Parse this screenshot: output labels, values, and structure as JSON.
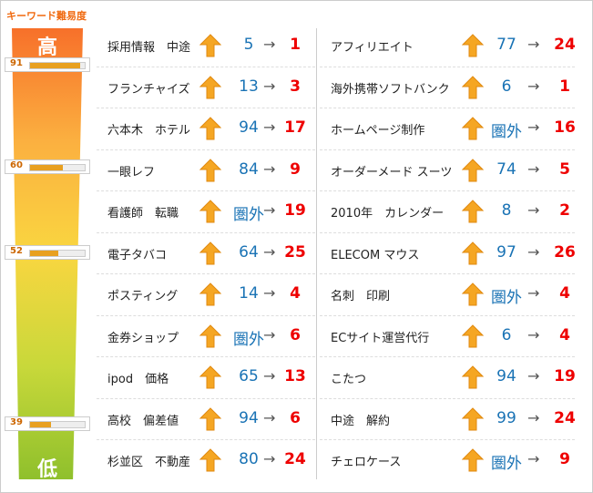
{
  "header": {
    "title": "キーワード難易度",
    "high": "高",
    "low": "低"
  },
  "arrow": "→",
  "difficulty_markers": [
    91,
    60,
    52,
    39
  ],
  "columns": [
    {
      "rows": [
        {
          "keyword": "採用情報　中途",
          "before": 5,
          "after": 1
        },
        {
          "keyword": "フランチャイズ",
          "before": 13,
          "after": 3
        },
        {
          "keyword": "六本木　ホテル",
          "before": 94,
          "after": 17
        },
        {
          "keyword": "一眼レフ",
          "before": 84,
          "after": 9
        },
        {
          "keyword": "看護師　転職",
          "before": "圏外",
          "after": 19
        },
        {
          "keyword": "電子タバコ",
          "before": 64,
          "after": 25
        },
        {
          "keyword": "ポスティング",
          "before": 14,
          "after": 4
        },
        {
          "keyword": "金券ショップ",
          "before": "圏外",
          "after": 6
        },
        {
          "keyword": "ipod　価格",
          "before": 65,
          "after": 13
        },
        {
          "keyword": "高校　偏差値",
          "before": 94,
          "after": 6
        },
        {
          "keyword": "杉並区　不動産",
          "before": 80,
          "after": 24
        }
      ]
    },
    {
      "rows": [
        {
          "keyword": "アフィリエイト",
          "before": 77,
          "after": 24
        },
        {
          "keyword": "海外携帯ソフトバンク",
          "before": 6,
          "after": 1
        },
        {
          "keyword": "ホームページ制作",
          "before": "圏外",
          "after": 16
        },
        {
          "keyword": "オーダーメード スーツ",
          "before": 74,
          "after": 5
        },
        {
          "keyword": "2010年　カレンダー",
          "before": 8,
          "after": 2
        },
        {
          "keyword": "ELECOM マウス",
          "before": 97,
          "after": 26
        },
        {
          "keyword": "名刺　印刷",
          "before": "圏外",
          "after": 4
        },
        {
          "keyword": "ECサイト運営代行",
          "before": 6,
          "after": 4
        },
        {
          "keyword": "こたつ",
          "before": 94,
          "after": 19
        },
        {
          "keyword": "中途　解約",
          "before": 99,
          "after": 24
        },
        {
          "keyword": "チェロケース",
          "before": "圏外",
          "after": 9
        }
      ]
    }
  ]
}
